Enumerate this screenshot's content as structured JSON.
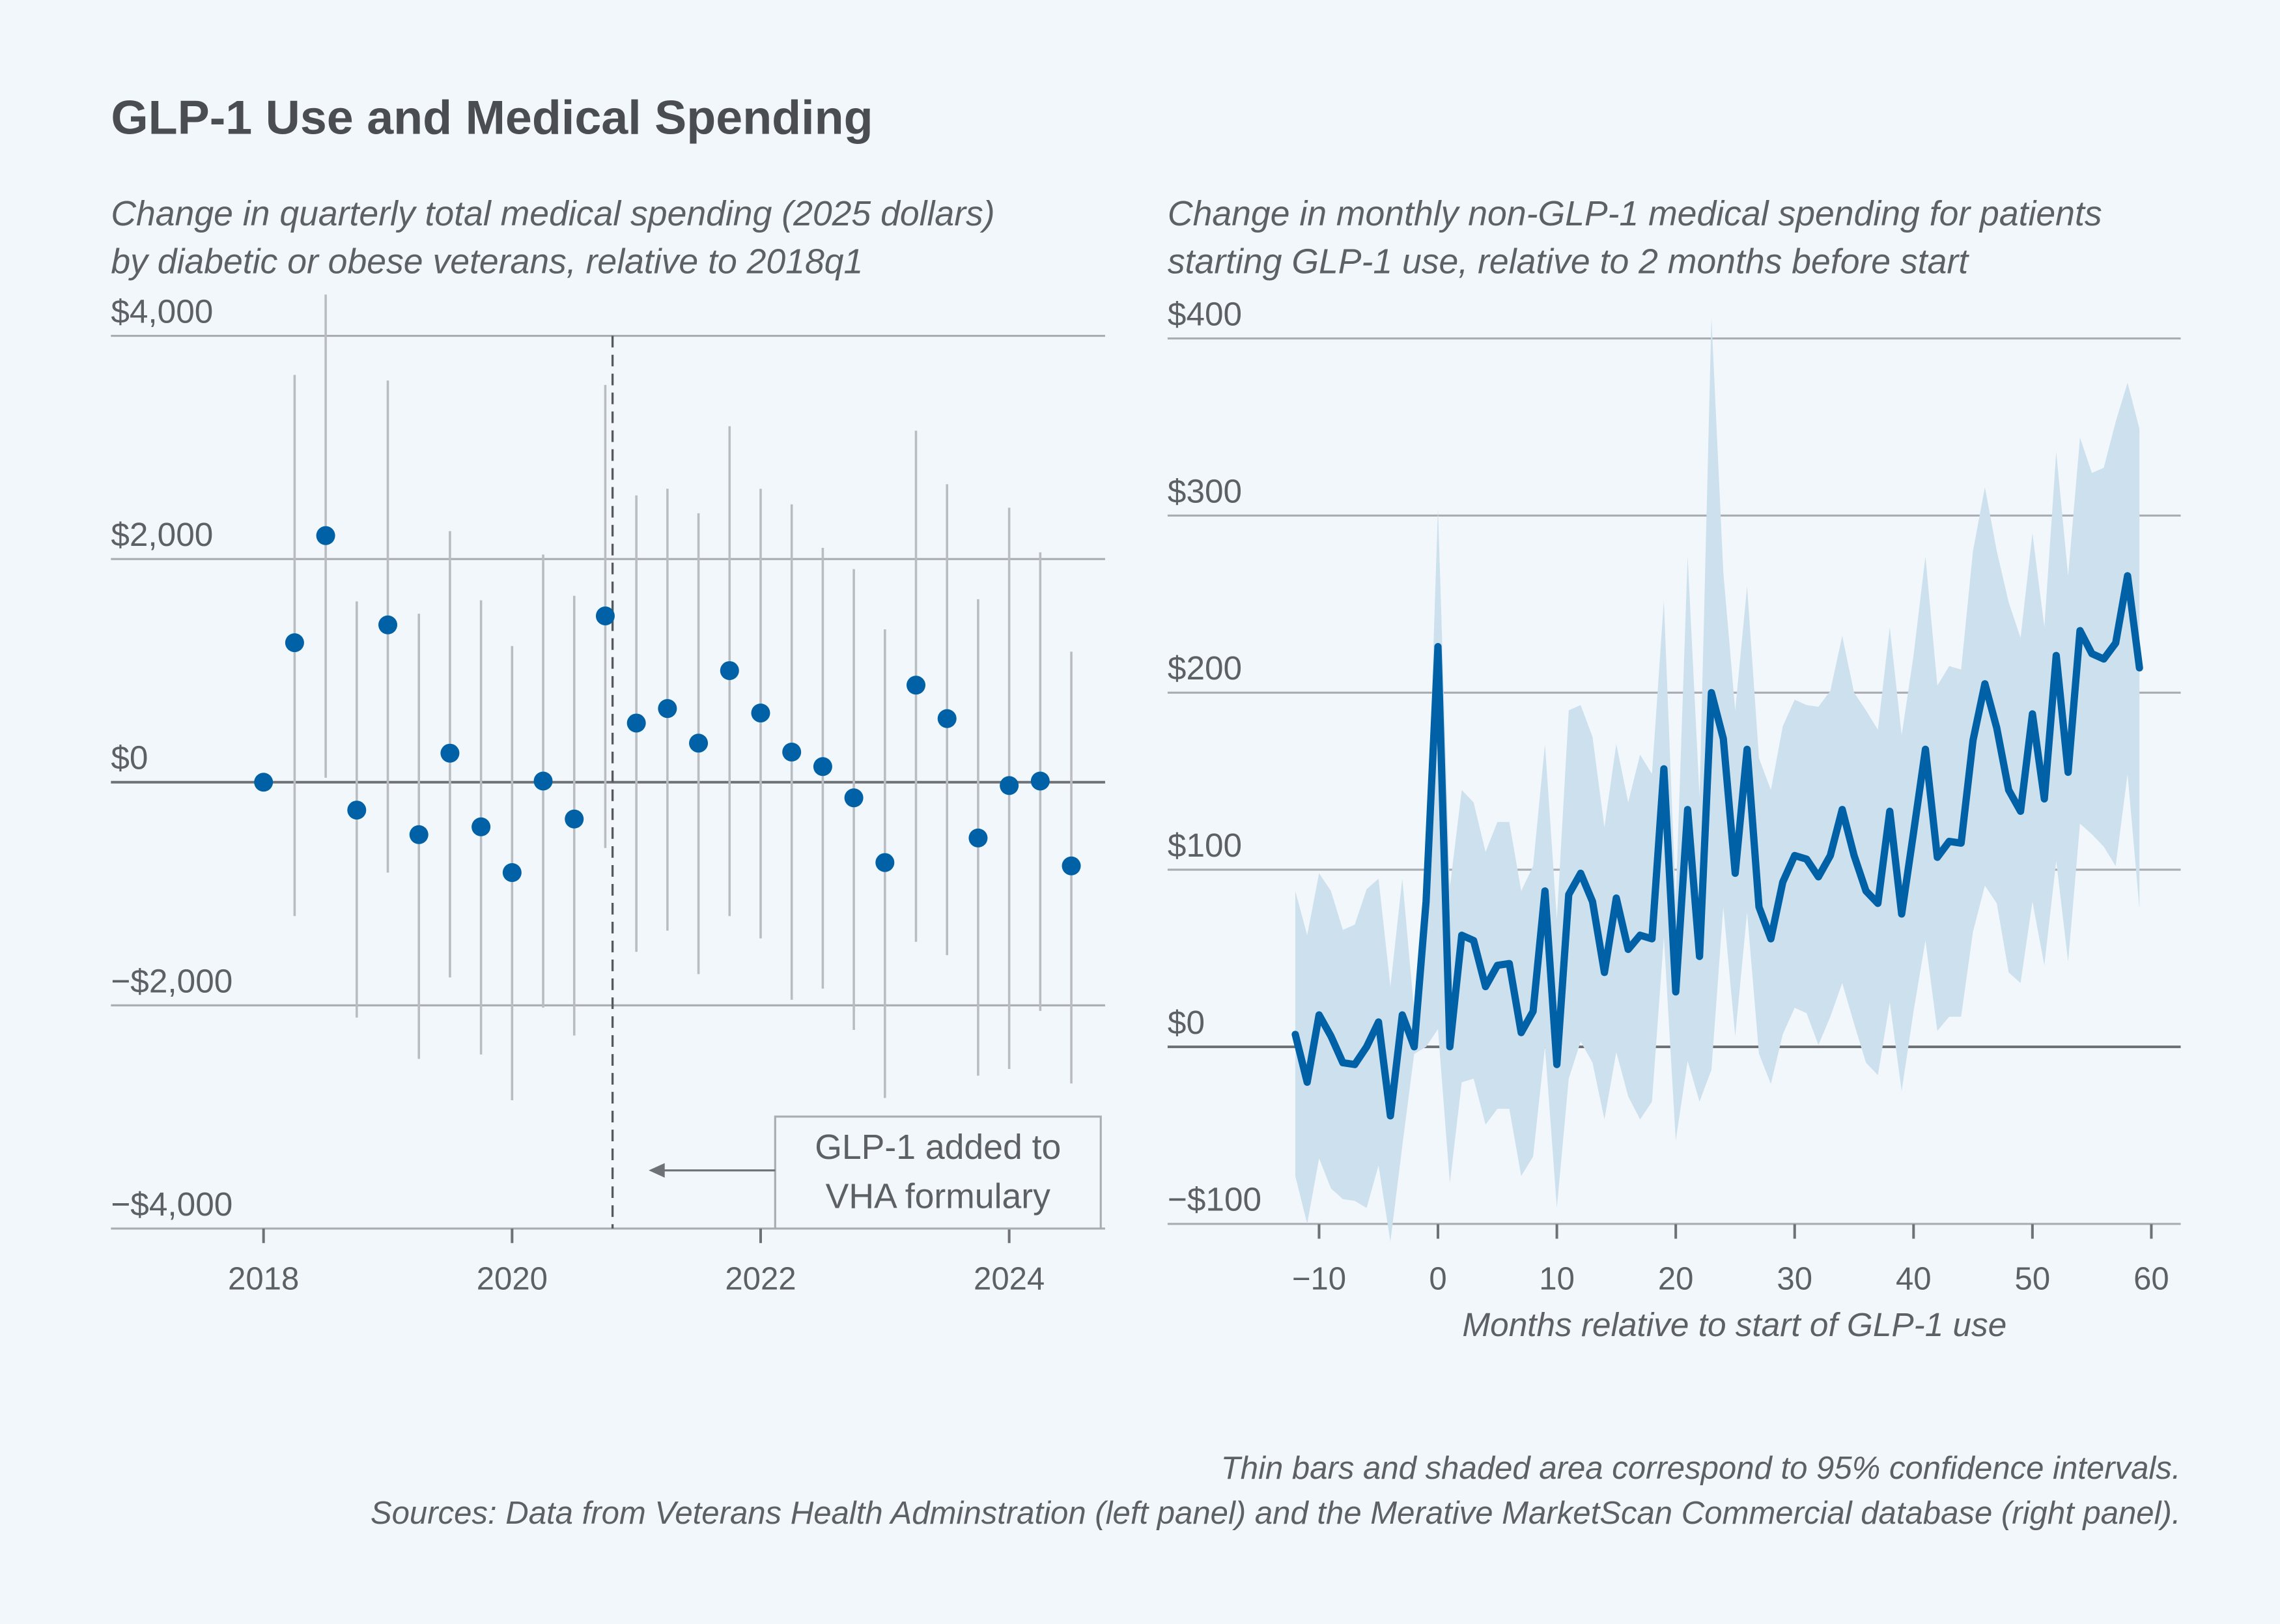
{
  "title": "GLP-1 Use and Medical Spending",
  "colors": {
    "background": "#f2f7fb",
    "series": "#0061a6",
    "ci_bar": "#b9bdc2",
    "ci_band": "#cde0ee"
  },
  "footnotes": [
    "Thin bars and shaded area correspond to 95% confidence intervals.",
    "Sources: Data from Veterans Health Adminstration (left panel) and the Merative MarketScan Commercial database (right panel)."
  ],
  "chart_data": [
    {
      "type": "scatter",
      "subtitle": [
        "Change in quarterly total medical spending (2025 dollars)",
        "by diabetic or obese veterans, relative to 2018q1"
      ],
      "ylim": [
        -4000,
        4000
      ],
      "yticks": [
        4000,
        2000,
        0,
        -2000,
        -4000
      ],
      "ytick_labels": [
        "$4,000",
        "$2,000",
        "$0",
        "−$2,000",
        "−$4,000"
      ],
      "xticks": [
        2018,
        2020,
        2022,
        2024
      ],
      "xtick_labels": [
        "2018",
        "2020",
        "2022",
        "2024"
      ],
      "grid": true,
      "x": [
        "2018q1",
        "2018q2",
        "2018q3",
        "2018q4",
        "2019q1",
        "2019q2",
        "2019q3",
        "2019q4",
        "2020q1",
        "2020q2",
        "2020q3",
        "2020q4",
        "2021q1",
        "2021q2",
        "2021q3",
        "2021q4",
        "2022q1",
        "2022q2",
        "2022q3",
        "2022q4",
        "2023q1",
        "2023q2",
        "2023q3",
        "2023q4",
        "2024q1",
        "2024q2",
        "2024q3"
      ],
      "y": [
        0,
        1250,
        2210,
        -250,
        1410,
        -470,
        260,
        -400,
        -810,
        10,
        -330,
        1490,
        530,
        660,
        350,
        1000,
        620,
        270,
        140,
        -140,
        -720,
        870,
        570,
        -500,
        -30,
        10,
        -750
      ],
      "ci_low": [
        null,
        -1200,
        40,
        -2110,
        -810,
        -2480,
        -1750,
        -2440,
        -2850,
        -2020,
        -2270,
        -590,
        -1520,
        -1330,
        -1720,
        -1200,
        -1400,
        -1950,
        -1850,
        -2220,
        -2830,
        -1430,
        -1550,
        -2630,
        -2570,
        -2050,
        -2700
      ],
      "ci_high": [
        null,
        3650,
        4370,
        1620,
        3600,
        1510,
        2250,
        1630,
        1220,
        2040,
        1670,
        3560,
        2570,
        2630,
        2410,
        3190,
        2630,
        2490,
        2100,
        1910,
        1370,
        3150,
        2670,
        1640,
        2460,
        2060,
        1170
      ],
      "annotation": {
        "text": [
          "GLP-1 added to",
          "VHA formulary"
        ],
        "x": "2020q4"
      }
    },
    {
      "type": "line",
      "subtitle": [
        "Change in monthly non-GLP-1 medical spending for patients",
        "starting GLP-1 use, relative to 2 months before start"
      ],
      "xlabel": "Months relative to start of GLP-1 use",
      "ylim": [
        -100,
        400
      ],
      "xlim": [
        -12,
        59
      ],
      "yticks": [
        400,
        300,
        200,
        100,
        0,
        -100
      ],
      "ytick_labels": [
        "$400",
        "$300",
        "$200",
        "$100",
        "$0",
        "−$100"
      ],
      "xticks": [
        -10,
        0,
        10,
        20,
        30,
        40,
        50,
        60
      ],
      "xtick_labels": [
        "−10",
        "0",
        "10",
        "20",
        "30",
        "40",
        "50",
        "60"
      ],
      "grid": true,
      "x_start": -12,
      "y": [
        7,
        -20,
        18,
        6,
        -9,
        -10,
        0,
        14,
        -39,
        18,
        0,
        82,
        226,
        0,
        63,
        60,
        34,
        46,
        47,
        8,
        20,
        88,
        -10,
        86,
        98,
        82,
        42,
        84,
        55,
        63,
        61,
        157,
        31,
        134,
        51,
        200,
        174,
        98,
        168,
        79,
        61,
        93,
        108,
        106,
        96,
        108,
        134,
        108,
        88,
        81,
        133,
        75,
        121,
        168,
        107,
        116,
        115,
        173,
        205,
        180,
        145,
        133,
        188,
        140,
        221,
        155,
        235,
        222,
        219,
        228,
        266,
        214
      ],
      "ci_high": [
        88,
        63,
        98,
        88,
        66,
        69,
        89,
        95,
        34,
        95,
        20,
        100,
        304,
        90,
        145,
        138,
        110,
        127,
        127,
        88,
        102,
        171,
        72,
        190,
        193,
        175,
        124,
        171,
        138,
        165,
        154,
        252,
        82,
        277,
        141,
        412,
        268,
        190,
        260,
        163,
        145,
        181,
        196,
        193,
        192,
        201,
        232,
        200,
        190,
        179,
        237,
        176,
        221,
        277,
        204,
        215,
        213,
        280,
        316,
        280,
        251,
        231,
        290,
        237,
        336,
        266,
        344,
        324,
        327,
        353,
        375,
        349
      ],
      "ci_low": [
        -73,
        -100,
        -63,
        -80,
        -86,
        -87,
        -91,
        -67,
        -110,
        -56,
        -4,
        0,
        10,
        -77,
        -20,
        -18,
        -44,
        -35,
        -35,
        -73,
        -62,
        0,
        -91,
        -18,
        3,
        -9,
        -41,
        -3,
        -28,
        -41,
        -31,
        62,
        -53,
        -8,
        -31,
        -13,
        79,
        6,
        76,
        -4,
        -21,
        7,
        22,
        19,
        1,
        17,
        36,
        13,
        -9,
        -16,
        25,
        -25,
        20,
        60,
        9,
        17,
        17,
        65,
        91,
        81,
        42,
        36,
        82,
        46,
        105,
        48,
        126,
        120,
        113,
        102,
        154,
        78
      ]
    }
  ]
}
